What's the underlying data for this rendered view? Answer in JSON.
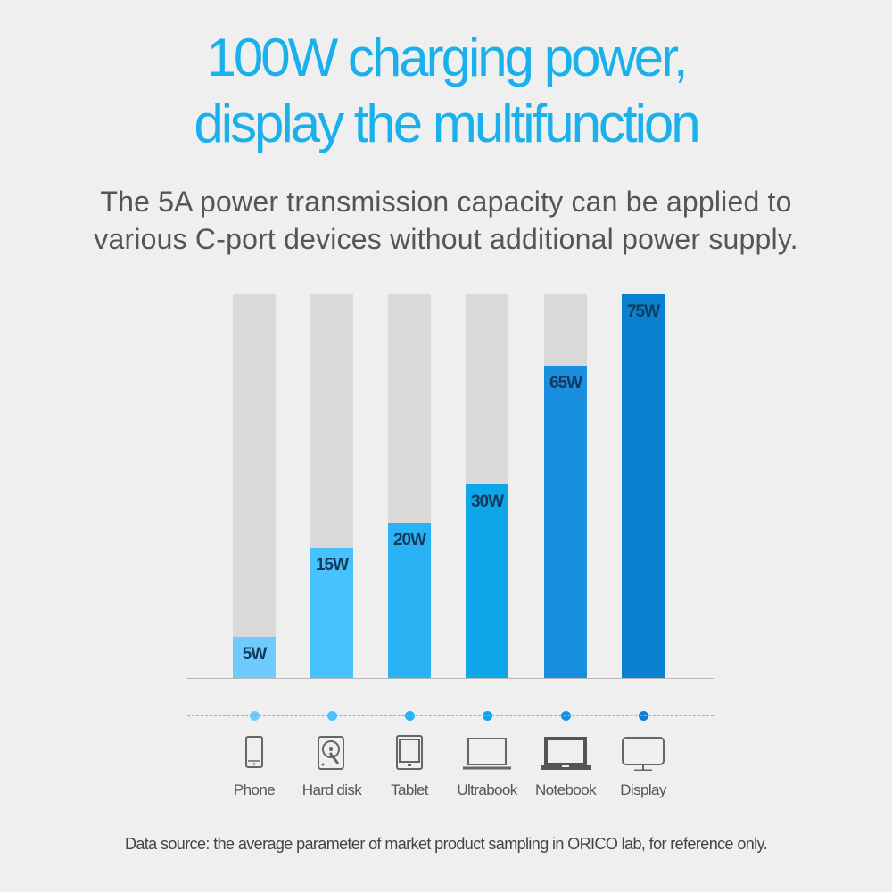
{
  "title": {
    "line1": "100W charging power,",
    "line2": "display the multifunction"
  },
  "subtitle": {
    "line1": "The 5A power transmission capacity can be applied to",
    "line2": "various C-port devices without additional power supply."
  },
  "chart_data": {
    "type": "bar",
    "categories": [
      "Phone",
      "Hard disk",
      "Tablet",
      "Ultrabook",
      "Notebook",
      "Display"
    ],
    "values": [
      5,
      15,
      20,
      30,
      65,
      75
    ],
    "labels": [
      "5W",
      "15W",
      "20W",
      "30W",
      "65W",
      "75W"
    ],
    "unit": "W",
    "colors": [
      "#6ecbfb",
      "#47c2fc",
      "#29b3f5",
      "#0ca6e9",
      "#1a8fe0",
      "#0a80d0"
    ],
    "track_color": "#d9d9d9",
    "icons": [
      "phone-icon",
      "hard-disk-icon",
      "tablet-icon",
      "ultrabook-icon",
      "notebook-icon",
      "display-icon"
    ],
    "title": "",
    "xlabel": "",
    "ylabel": "",
    "grid": false
  },
  "footnote": "Data source: the average parameter of market product sampling in ORICO lab, for reference only."
}
